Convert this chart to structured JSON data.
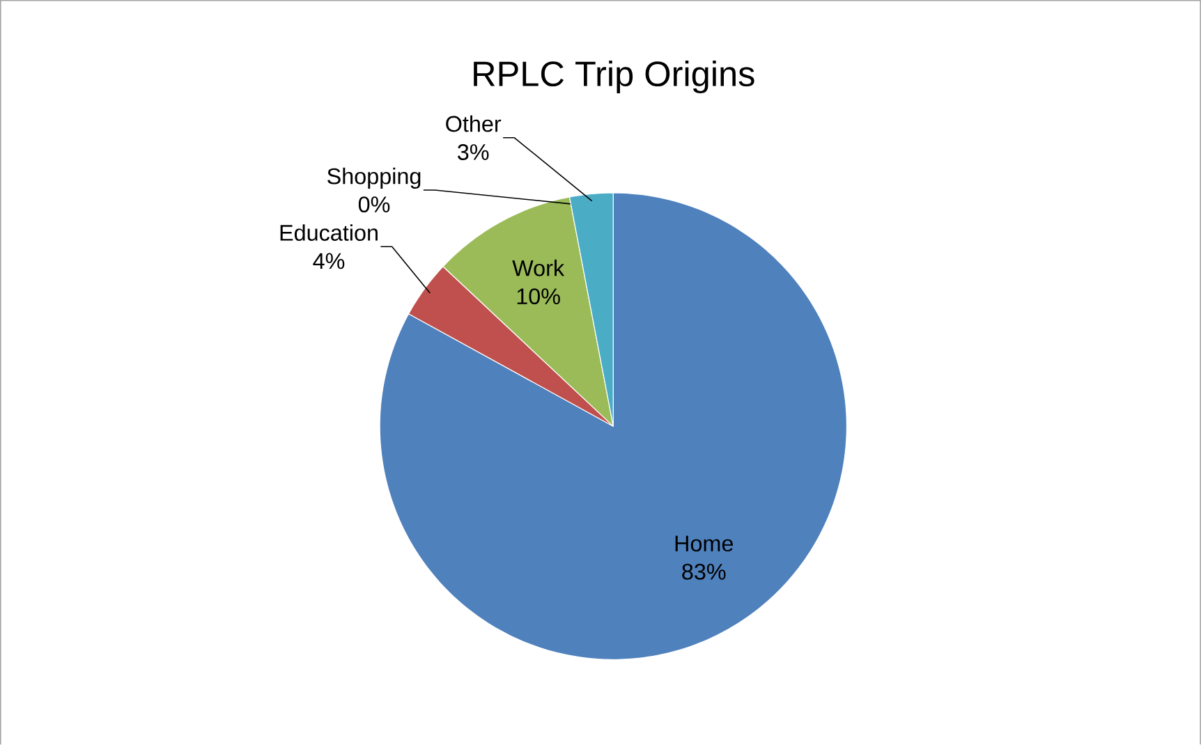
{
  "chart_data": {
    "type": "pie",
    "title": "RPLC Trip Origins",
    "categories": [
      "Home",
      "Education",
      "Work",
      "Shopping",
      "Other"
    ],
    "values": [
      83,
      4,
      10,
      0,
      3
    ],
    "value_labels": [
      "83%",
      "4%",
      "10%",
      "0%",
      "3%"
    ],
    "colors": [
      "#4f81bd",
      "#c0504d",
      "#9bbb59",
      "#8064a2",
      "#4bacc6"
    ]
  }
}
